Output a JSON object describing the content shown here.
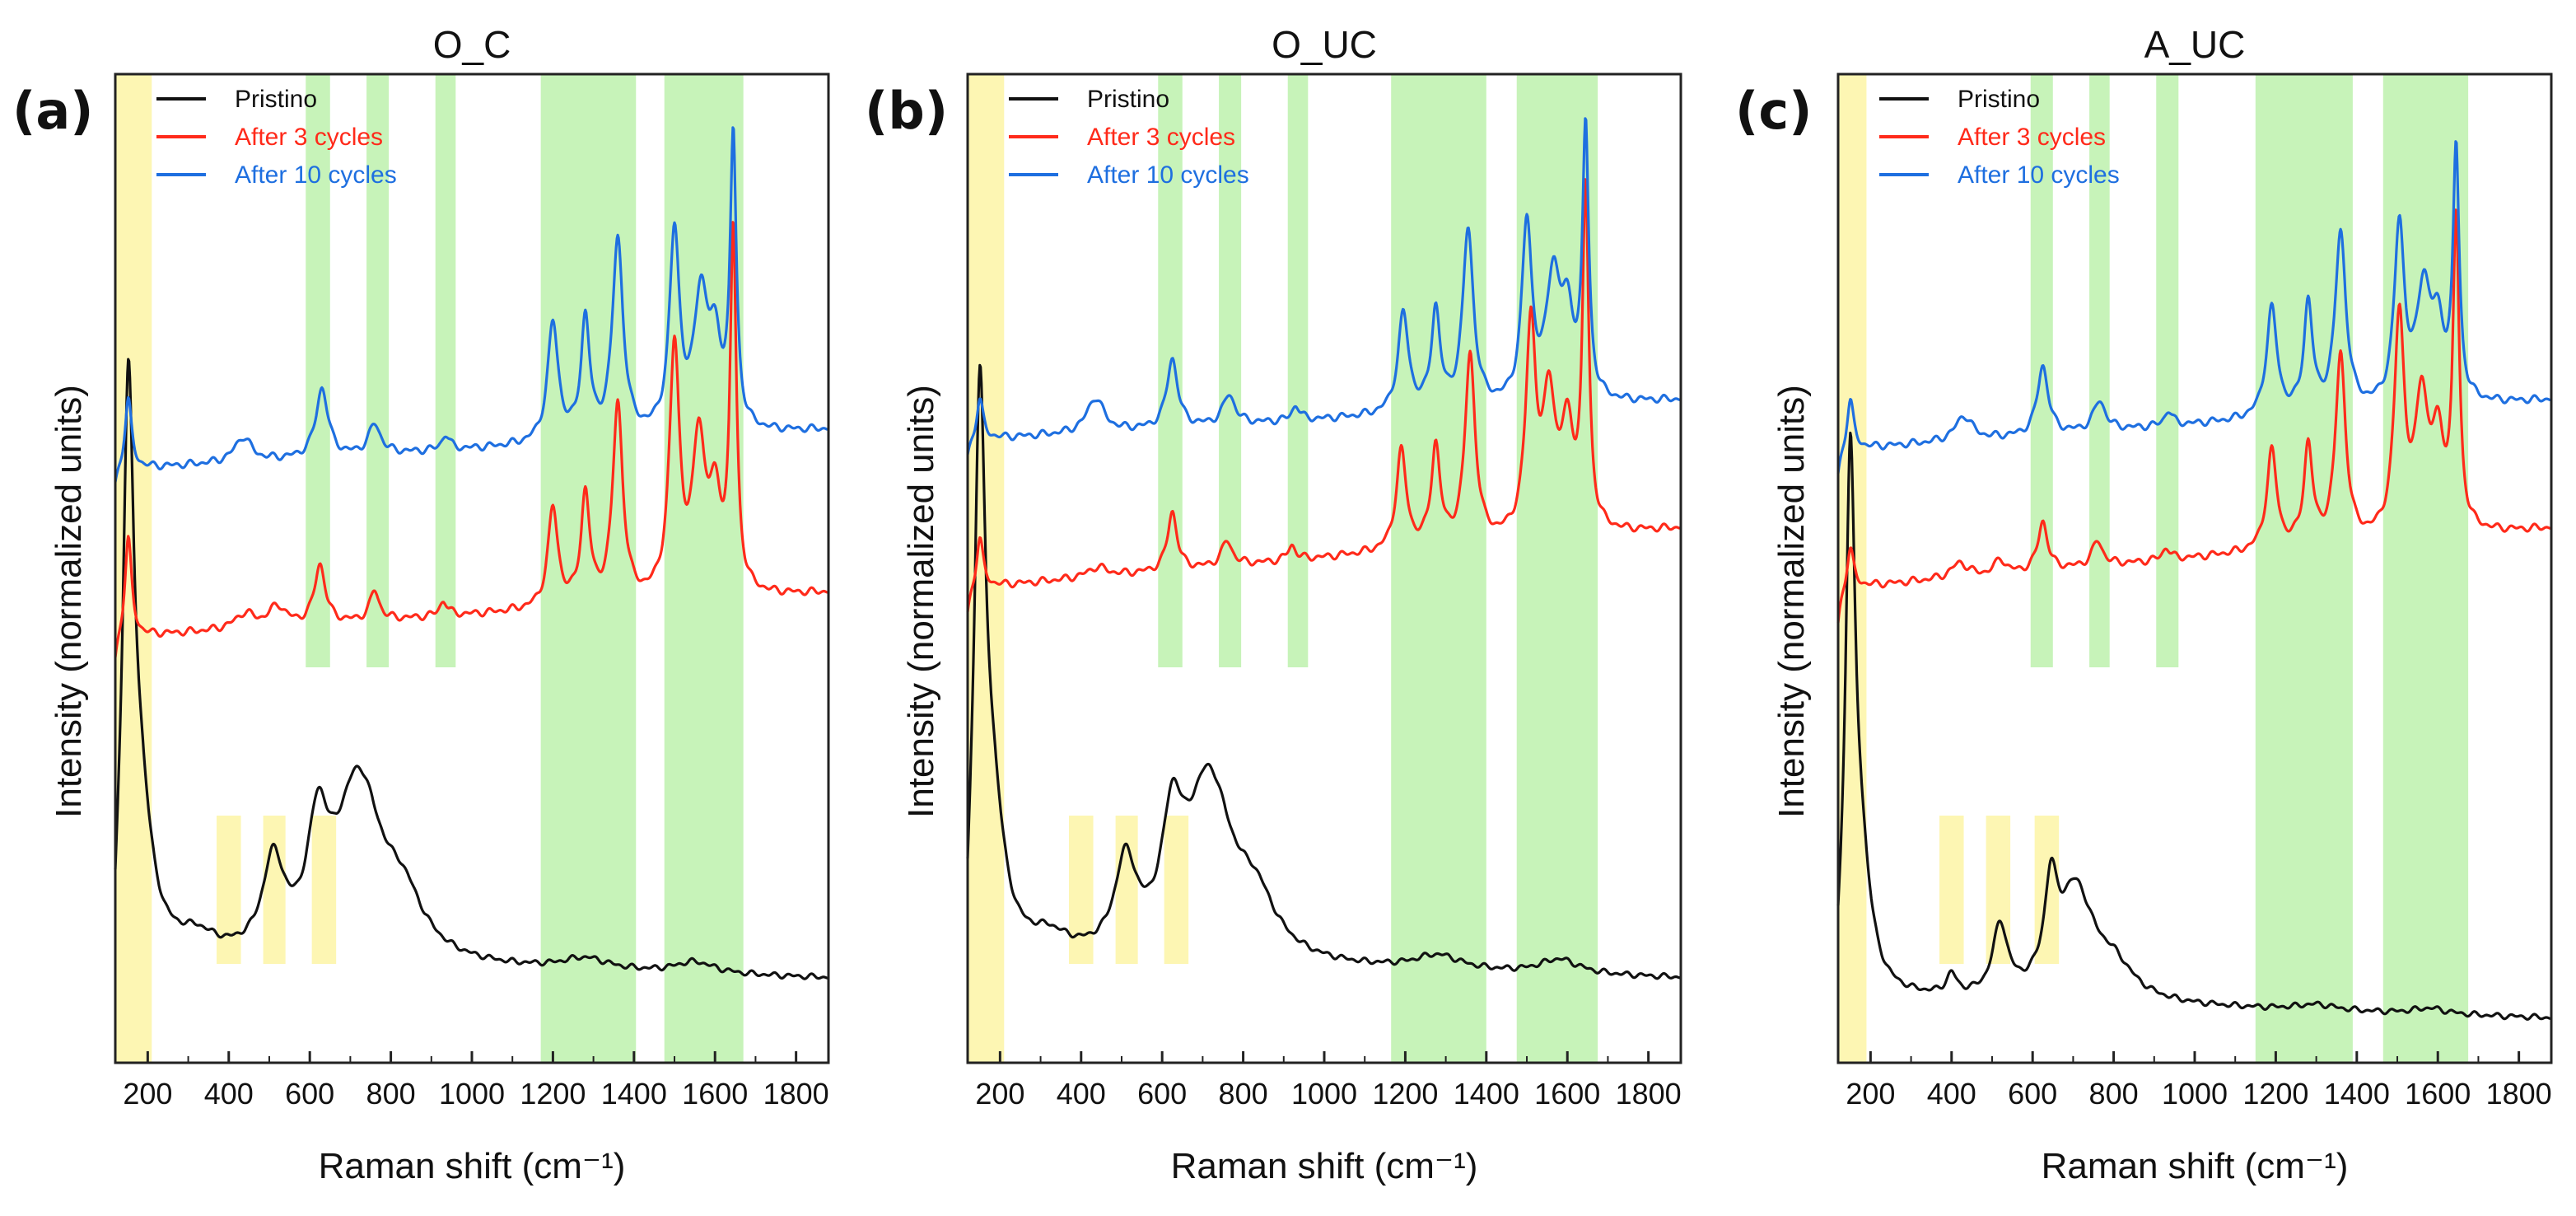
{
  "figure": {
    "y_axis_title": "Intensity (normalized units)",
    "x_axis_title": "Raman shift (cm⁻¹)"
  },
  "colors": {
    "pristine": "#111111",
    "after3": "#ff2a1a",
    "after10": "#1e6fe0",
    "yellow_band": "#fdf5a6",
    "green_band": "#b9f0a8"
  },
  "legend": [
    {
      "label": "Pristino",
      "color": "#111111"
    },
    {
      "label": "After 3 cycles",
      "color": "#ff2a1a"
    },
    {
      "label": "After 10 cycles",
      "color": "#1e6fe0"
    }
  ],
  "chart_data": [
    {
      "type": "line",
      "panel": "(a)",
      "title": "O_C",
      "xlabel": "Raman shift (cm⁻¹)",
      "ylabel": "Intensity (normalized units)",
      "xlim": [
        120,
        1880
      ],
      "ylim": [
        0,
        1
      ],
      "xticks": [
        200,
        400,
        600,
        800,
        1000,
        1200,
        1400,
        1600,
        1800
      ],
      "yticks_shown": false,
      "highlight_bands": {
        "yellow": [
          [
            120,
            210
          ],
          [
            370,
            430
          ],
          [
            485,
            540
          ],
          [
            605,
            665
          ]
        ],
        "green": [
          [
            590,
            650
          ],
          [
            740,
            795
          ],
          [
            910,
            960
          ],
          [
            1170,
            1405
          ],
          [
            1475,
            1670
          ]
        ]
      },
      "series": [
        {
          "name": "Pristino",
          "color": "#111111",
          "baseline": 0.1,
          "tail": -0.015,
          "ripple": 0.003,
          "start": 0.05,
          "peaks": [
            [
              152,
              0.52,
              16
            ],
            [
              180,
              0.14,
              35
            ],
            [
              320,
              0.02,
              60
            ],
            [
              510,
              0.09,
              32
            ],
            [
              620,
              0.11,
              30
            ],
            [
              720,
              0.18,
              70
            ],
            [
              830,
              0.05,
              60
            ],
            [
              1280,
              0.012,
              70
            ],
            [
              1550,
              0.012,
              60
            ]
          ]
        },
        {
          "name": "After 3 cycles",
          "color": "#ff2a1a",
          "baseline": 0.43,
          "tail": 0.045,
          "ripple": 0.004,
          "start": 0.4,
          "peaks": [
            [
              152,
              0.1,
              10
            ],
            [
              440,
              0.015,
              30
            ],
            [
              520,
              0.02,
              25
            ],
            [
              625,
              0.06,
              16
            ],
            [
              760,
              0.03,
              14
            ],
            [
              930,
              0.015,
              12
            ],
            [
              1200,
              0.1,
              15
            ],
            [
              1280,
              0.11,
              13
            ],
            [
              1360,
              0.2,
              15
            ],
            [
              1500,
              0.25,
              15
            ],
            [
              1560,
              0.15,
              18
            ],
            [
              1600,
              0.09,
              20
            ],
            [
              1645,
              0.36,
              9
            ]
          ]
        },
        {
          "name": "After 10 cycles",
          "color": "#1e6fe0",
          "baseline": 0.6,
          "tail": 0.04,
          "ripple": 0.004,
          "start": 0.58,
          "peaks": [
            [
              152,
              0.07,
              10
            ],
            [
              435,
              0.025,
              25
            ],
            [
              630,
              0.07,
              18
            ],
            [
              760,
              0.03,
              18
            ],
            [
              935,
              0.015,
              12
            ],
            [
              1200,
              0.12,
              16
            ],
            [
              1280,
              0.12,
              13
            ],
            [
              1360,
              0.2,
              16
            ],
            [
              1500,
              0.2,
              15
            ],
            [
              1565,
              0.13,
              20
            ],
            [
              1600,
              0.08,
              20
            ],
            [
              1645,
              0.29,
              9
            ]
          ]
        }
      ]
    },
    {
      "type": "line",
      "panel": "(b)",
      "title": "O_UC",
      "xlabel": "Raman shift (cm⁻¹)",
      "ylabel": "Intensity (normalized units)",
      "xlim": [
        120,
        1880
      ],
      "ylim": [
        0,
        1
      ],
      "xticks": [
        200,
        400,
        600,
        800,
        1000,
        1200,
        1400,
        1600,
        1800
      ],
      "yticks_shown": false,
      "highlight_bands": {
        "yellow": [
          [
            120,
            210
          ],
          [
            370,
            430
          ],
          [
            485,
            540
          ],
          [
            605,
            665
          ]
        ],
        "green": [
          [
            590,
            650
          ],
          [
            740,
            795
          ],
          [
            910,
            960
          ],
          [
            1165,
            1400
          ],
          [
            1475,
            1675
          ]
        ]
      },
      "series": [
        {
          "name": "Pristino",
          "color": "#111111",
          "baseline": 0.1,
          "tail": -0.015,
          "ripple": 0.003,
          "start": 0.05,
          "peaks": [
            [
              150,
              0.52,
              16
            ],
            [
              180,
              0.14,
              35
            ],
            [
              320,
              0.02,
              60
            ],
            [
              510,
              0.09,
              32
            ],
            [
              625,
              0.11,
              30
            ],
            [
              715,
              0.18,
              70
            ],
            [
              830,
              0.05,
              60
            ],
            [
              1280,
              0.015,
              70
            ],
            [
              1580,
              0.015,
              60
            ]
          ]
        },
        {
          "name": "After 3 cycles",
          "color": "#ff2a1a",
          "baseline": 0.48,
          "tail": 0.06,
          "ripple": 0.004,
          "start": 0.45,
          "peaks": [
            [
              150,
              0.05,
              10
            ],
            [
              440,
              0.01,
              30
            ],
            [
              625,
              0.06,
              14
            ],
            [
              760,
              0.025,
              16
            ],
            [
              920,
              0.015,
              12
            ],
            [
              1190,
              0.1,
              15
            ],
            [
              1275,
              0.1,
              13
            ],
            [
              1360,
              0.19,
              15
            ],
            [
              1510,
              0.21,
              15
            ],
            [
              1555,
              0.13,
              18
            ],
            [
              1600,
              0.1,
              20
            ],
            [
              1645,
              0.34,
              9
            ]
          ]
        },
        {
          "name": "After 10 cycles",
          "color": "#1e6fe0",
          "baseline": 0.63,
          "tail": 0.04,
          "ripple": 0.004,
          "start": 0.61,
          "peaks": [
            [
              150,
              0.04,
              10
            ],
            [
              435,
              0.035,
              25
            ],
            [
              625,
              0.07,
              16
            ],
            [
              765,
              0.03,
              18
            ],
            [
              930,
              0.015,
              12
            ],
            [
              1195,
              0.1,
              16
            ],
            [
              1275,
              0.1,
              13
            ],
            [
              1355,
              0.18,
              16
            ],
            [
              1500,
              0.18,
              15
            ],
            [
              1565,
              0.12,
              20
            ],
            [
              1600,
              0.08,
              20
            ],
            [
              1645,
              0.27,
              9
            ]
          ]
        }
      ]
    },
    {
      "type": "line",
      "panel": "(c)",
      "title": "A_UC",
      "xlabel": "Raman shift (cm⁻¹)",
      "ylabel": "Intensity (normalized units)",
      "xlim": [
        120,
        1880
      ],
      "ylim": [
        0,
        1
      ],
      "xticks": [
        200,
        400,
        600,
        800,
        1000,
        1200,
        1400,
        1600,
        1800
      ],
      "yticks_shown": false,
      "highlight_bands": {
        "yellow": [
          [
            120,
            190
          ],
          [
            370,
            430
          ],
          [
            485,
            545
          ],
          [
            605,
            665
          ]
        ],
        "green": [
          [
            595,
            650
          ],
          [
            740,
            790
          ],
          [
            905,
            960
          ],
          [
            1150,
            1390
          ],
          [
            1465,
            1675
          ]
        ]
      },
      "series": [
        {
          "name": "Pristino",
          "color": "#111111",
          "baseline": 0.065,
          "tail": -0.02,
          "ripple": 0.003,
          "start": 0.04,
          "peaks": [
            [
              150,
              0.5,
              14
            ],
            [
              175,
              0.12,
              30
            ],
            [
              400,
              0.02,
              15
            ],
            [
              520,
              0.07,
              22
            ],
            [
              645,
              0.09,
              18
            ],
            [
              705,
              0.11,
              55
            ],
            [
              800,
              0.03,
              60
            ],
            [
              1300,
              0.006,
              60
            ],
            [
              1580,
              0.006,
              50
            ]
          ]
        },
        {
          "name": "After 3 cycles",
          "color": "#ff2a1a",
          "baseline": 0.48,
          "tail": 0.06,
          "ripple": 0.004,
          "start": 0.44,
          "peaks": [
            [
              150,
              0.04,
              10
            ],
            [
              420,
              0.015,
              25
            ],
            [
              520,
              0.015,
              15
            ],
            [
              625,
              0.05,
              14
            ],
            [
              760,
              0.025,
              16
            ],
            [
              930,
              0.012,
              12
            ],
            [
              1190,
              0.1,
              15
            ],
            [
              1280,
              0.1,
              13
            ],
            [
              1360,
              0.19,
              15
            ],
            [
              1505,
              0.22,
              15
            ],
            [
              1560,
              0.13,
              18
            ],
            [
              1600,
              0.09,
              20
            ],
            [
              1645,
              0.31,
              9
            ]
          ]
        },
        {
          "name": "After 10 cycles",
          "color": "#1e6fe0",
          "baseline": 0.62,
          "tail": 0.05,
          "ripple": 0.004,
          "start": 0.59,
          "peaks": [
            [
              150,
              0.05,
              10
            ],
            [
              430,
              0.025,
              25
            ],
            [
              625,
              0.07,
              16
            ],
            [
              765,
              0.03,
              18
            ],
            [
              935,
              0.015,
              12
            ],
            [
              1190,
              0.11,
              16
            ],
            [
              1280,
              0.11,
              13
            ],
            [
              1360,
              0.18,
              16
            ],
            [
              1505,
              0.18,
              15
            ],
            [
              1565,
              0.11,
              20
            ],
            [
              1600,
              0.07,
              20
            ],
            [
              1645,
              0.25,
              9
            ]
          ]
        }
      ]
    }
  ]
}
